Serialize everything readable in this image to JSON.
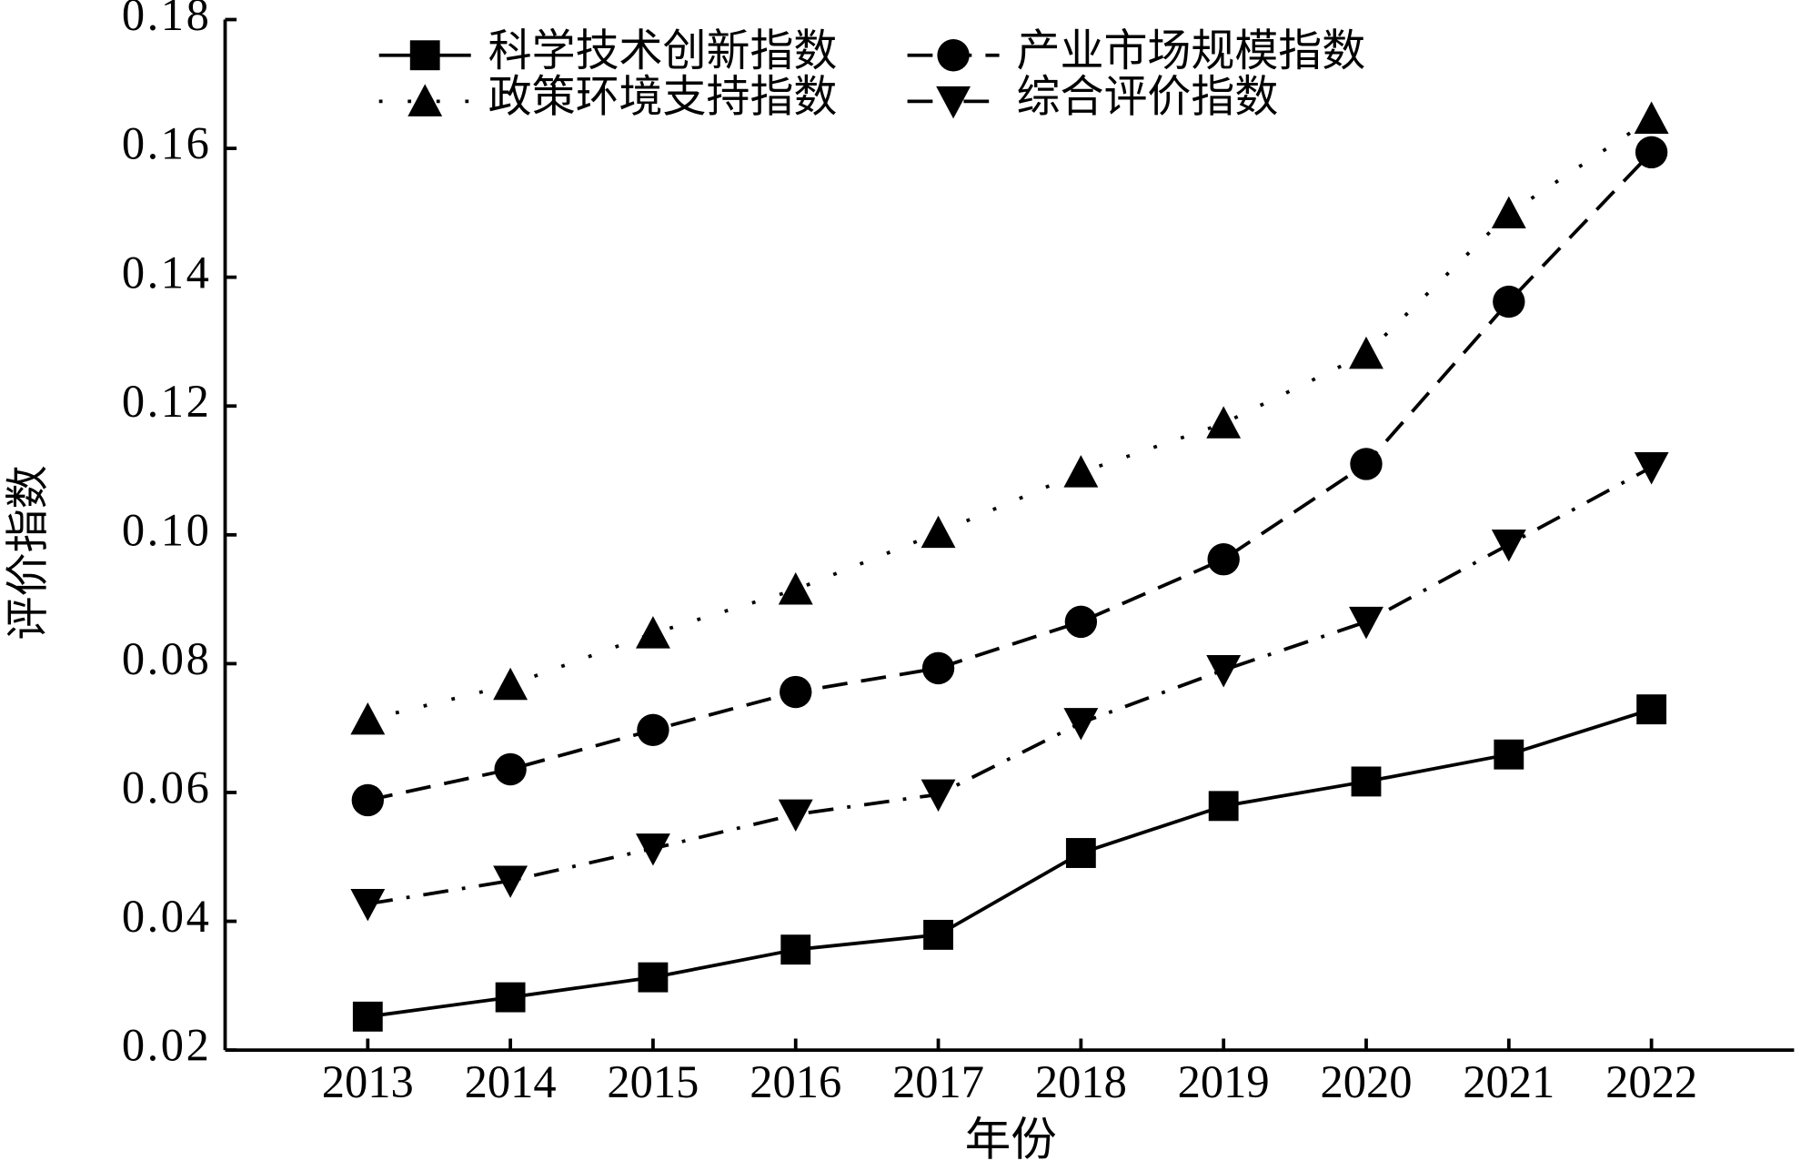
{
  "chart_data": {
    "type": "line",
    "x_label": "年份",
    "y_label": "评价指数",
    "categories": [
      "2013",
      "2014",
      "2015",
      "2016",
      "2017",
      "2018",
      "2019",
      "2020",
      "2021",
      "2022"
    ],
    "series": [
      {
        "name": "科学技术创新指数",
        "color": "#000000",
        "dash": "solid",
        "marker": "square",
        "values": [
          0.0252,
          0.0282,
          0.0313,
          0.0356,
          0.0379,
          0.0506,
          0.0579,
          0.0617,
          0.0659,
          0.0729
        ]
      },
      {
        "name": "产业市场规模指数",
        "color": "#000000",
        "dash": "dashed",
        "marker": "circle",
        "values": [
          0.0588,
          0.0636,
          0.0697,
          0.0756,
          0.0793,
          0.0865,
          0.0962,
          0.111,
          0.1362,
          0.1594
        ]
      },
      {
        "name": "政策环境支持指数",
        "color": "#000000",
        "dash": "dotted",
        "marker": "triangle-up",
        "values": [
          0.0713,
          0.0767,
          0.0847,
          0.0915,
          0.1003,
          0.1097,
          0.1173,
          0.1281,
          0.1499,
          0.1646
        ]
      },
      {
        "name": "综合评价指数",
        "color": "#000000",
        "dash": "dashdot",
        "marker": "triangle-down",
        "values": [
          0.0427,
          0.0463,
          0.0513,
          0.0566,
          0.0597,
          0.0708,
          0.079,
          0.0865,
          0.0985,
          0.1105
        ]
      }
    ],
    "ylim": [
      0.02,
      0.18
    ],
    "yticks": [
      0.02,
      0.04,
      0.06,
      0.08,
      {
        "value": 0.1,
        "label": "0.10"
      },
      0.12,
      0.14,
      0.16,
      0.18
    ],
    "legend_loc": "upper center",
    "grid": false
  }
}
